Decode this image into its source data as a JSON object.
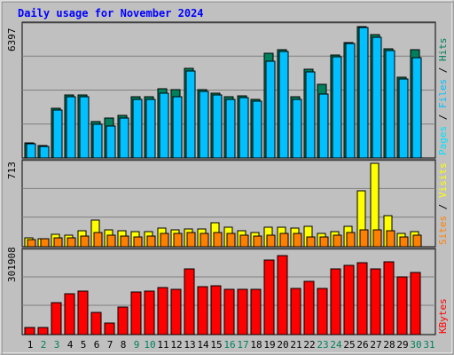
{
  "chart_data": [
    {
      "type": "bar",
      "title": "Daily usage for November 2024",
      "panel": "top",
      "ymax_label": "6397",
      "ylim": [
        0,
        6397
      ],
      "side_label": [
        "Pages",
        "Files",
        "Hits"
      ],
      "categories": [
        "1",
        "2",
        "3",
        "4",
        "5",
        "6",
        "7",
        "8",
        "9",
        "10",
        "11",
        "12",
        "13",
        "14",
        "15",
        "16",
        "17",
        "18",
        "19",
        "20",
        "21",
        "22",
        "23",
        "24",
        "25",
        "26",
        "27",
        "28",
        "29",
        "30",
        "31"
      ],
      "series": [
        {
          "name": "Hits",
          "color": "#00805c",
          "values": [
            750,
            600,
            2400,
            3050,
            3050,
            1750,
            1950,
            2050,
            2950,
            2950,
            3350,
            3300,
            4350,
            3300,
            3150,
            2950,
            3000,
            2850,
            5050,
            5250,
            2950,
            4300,
            3550,
            5000,
            5600,
            6350,
            5950,
            5300,
            3900,
            5250,
            0
          ]
        },
        {
          "name": "Files",
          "color": "#00c0ff",
          "values": [
            700,
            550,
            2300,
            2950,
            2950,
            1650,
            1550,
            1950,
            2850,
            2850,
            3150,
            2950,
            4200,
            3200,
            3050,
            2850,
            2900,
            2750,
            4700,
            5150,
            2850,
            4150,
            3100,
            4900,
            5550,
            6300,
            5850,
            5200,
            3800,
            4850,
            0
          ]
        },
        {
          "name": "Pages",
          "color": "#00e0ff",
          "values": [
            0,
            0,
            0,
            0,
            0,
            0,
            0,
            0,
            0,
            0,
            0,
            0,
            0,
            0,
            0,
            0,
            0,
            0,
            0,
            0,
            0,
            0,
            0,
            0,
            0,
            0,
            0,
            0,
            0,
            0,
            0
          ]
        }
      ]
    },
    {
      "type": "bar",
      "panel": "middle",
      "ymax_label": "713",
      "ylim": [
        0,
        713
      ],
      "side_label": [
        "Sites",
        "Visits"
      ],
      "categories": [
        "1",
        "2",
        "3",
        "4",
        "5",
        "6",
        "7",
        "8",
        "9",
        "10",
        "11",
        "12",
        "13",
        "14",
        "15",
        "16",
        "17",
        "18",
        "19",
        "20",
        "21",
        "22",
        "23",
        "24",
        "25",
        "26",
        "27",
        "28",
        "29",
        "30",
        "31"
      ],
      "series": [
        {
          "name": "Visits",
          "color": "#ffff00",
          "values": [
            75,
            65,
            105,
            95,
            135,
            225,
            145,
            135,
            130,
            130,
            160,
            145,
            155,
            150,
            205,
            165,
            135,
            125,
            170,
            165,
            160,
            175,
            115,
            130,
            175,
            475,
            712,
            265,
            110,
            130,
            0
          ]
        },
        {
          "name": "Sites",
          "color": "#ff8000",
          "values": [
            60,
            65,
            75,
            75,
            90,
            125,
            95,
            90,
            85,
            90,
            110,
            110,
            125,
            110,
            125,
            110,
            95,
            90,
            100,
            110,
            110,
            85,
            80,
            100,
            125,
            145,
            145,
            135,
            85,
            100,
            0
          ]
        }
      ]
    },
    {
      "type": "bar",
      "panel": "bottom",
      "ymax_label": "301908",
      "ylim": [
        0,
        301908
      ],
      "side_label": [
        "KBytes"
      ],
      "categories": [
        "1",
        "2",
        "3",
        "4",
        "5",
        "6",
        "7",
        "8",
        "9",
        "10",
        "11",
        "12",
        "13",
        "14",
        "15",
        "16",
        "17",
        "18",
        "19",
        "20",
        "21",
        "22",
        "23",
        "24",
        "25",
        "26",
        "27",
        "28",
        "29",
        "30",
        "31"
      ],
      "series": [
        {
          "name": "KBytes",
          "color": "#ff0000",
          "values": [
            27000,
            27000,
            118000,
            150000,
            160000,
            80000,
            42000,
            100000,
            155000,
            160000,
            172000,
            165000,
            240000,
            175000,
            180000,
            165000,
            165000,
            165000,
            272000,
            290000,
            170000,
            195000,
            168000,
            240000,
            252000,
            262000,
            240000,
            265000,
            212000,
            228000,
            0
          ]
        }
      ]
    }
  ],
  "x_label_colors": {
    "weekday": "#000000",
    "weekend": "#00805c"
  },
  "weekend_days": [
    2,
    3,
    9,
    10,
    16,
    17,
    23,
    24,
    30,
    31
  ],
  "colors": {
    "background": "#c0c0c0",
    "title": "#0000ff",
    "bar_outline": "#000000"
  }
}
